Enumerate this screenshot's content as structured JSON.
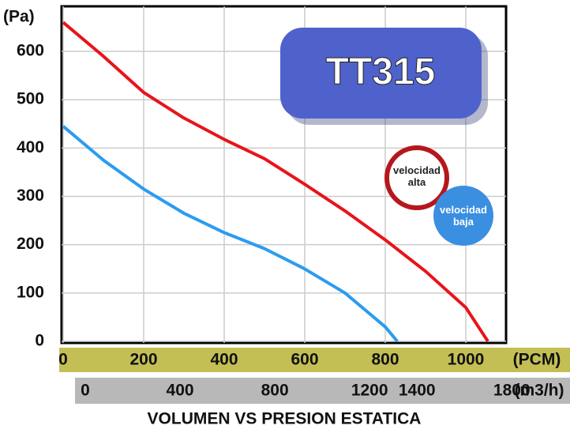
{
  "chart_data": {
    "type": "line",
    "title": "VOLUMEN VS PRESION ESTATICA",
    "badge": "TT315",
    "y_label": "(Pa)",
    "x_label": "(PCM)",
    "x2_label": "(m3/h)",
    "xlim": [
      0,
      1100
    ],
    "xticks": [
      0,
      200,
      400,
      600,
      800,
      1000
    ],
    "x2lim": [
      0,
      1869
    ],
    "x2ticks": [
      0,
      400,
      800,
      1200,
      1400,
      1800
    ],
    "ylim": [
      0,
      690
    ],
    "yticks": [
      0,
      100,
      200,
      300,
      400,
      500,
      600
    ],
    "grid": true,
    "series": [
      {
        "name": "velocidad alta",
        "color": "#e8141b",
        "x": [
          0,
          100,
          200,
          300,
          400,
          500,
          600,
          700,
          800,
          900,
          1000,
          1055
        ],
        "values": [
          660,
          590,
          515,
          462,
          418,
          378,
          325,
          270,
          210,
          145,
          70,
          0
        ]
      },
      {
        "name": "velocidad baja",
        "color": "#2b9cf0",
        "x": [
          0,
          100,
          200,
          300,
          400,
          500,
          600,
          700,
          800,
          830
        ],
        "values": [
          445,
          375,
          315,
          265,
          225,
          192,
          150,
          100,
          30,
          0
        ]
      }
    ]
  }
}
